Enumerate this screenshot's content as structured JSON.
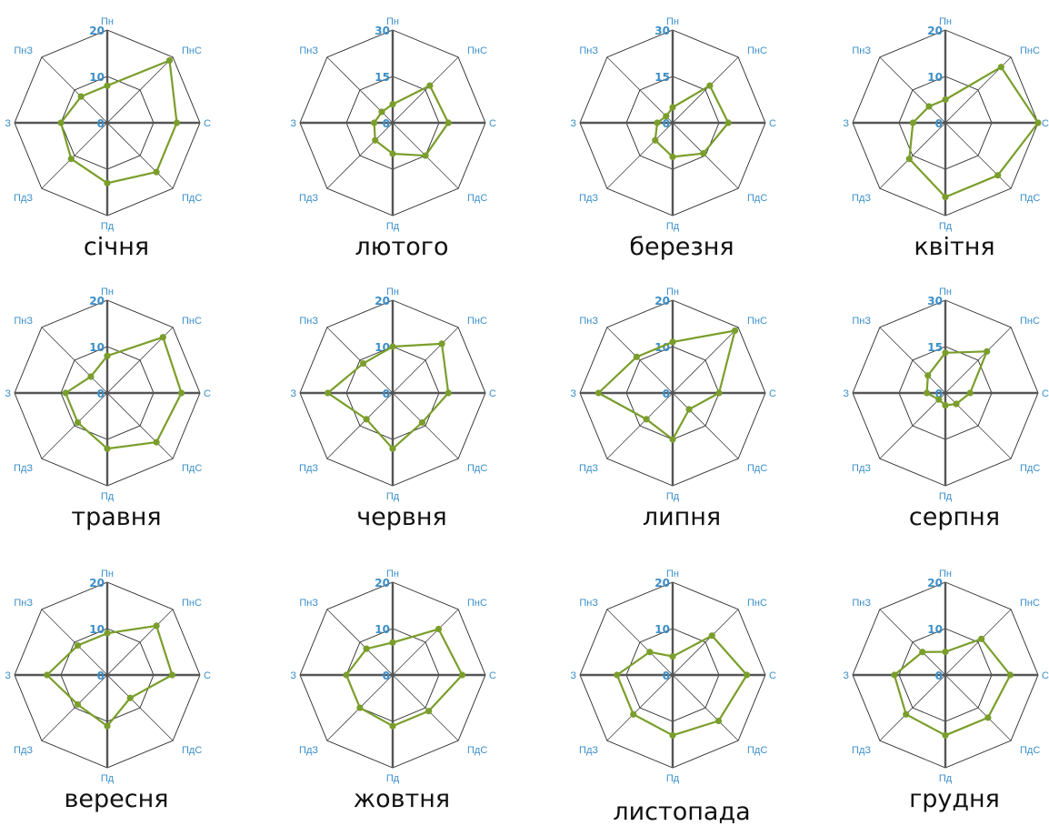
{
  "chart_data": [
    {
      "type": "radar",
      "month": "січня",
      "directions": [
        "Пн",
        "ПнС",
        "С",
        "ПдС",
        "Пд",
        "ПдЗ",
        "З",
        "ПнЗ"
      ],
      "rmax": 20,
      "scale_labels": [
        "20",
        "10",
        "0"
      ],
      "values": [
        8,
        19,
        15,
        15,
        13,
        11,
        10,
        8
      ],
      "color": "#7a9e2b"
    },
    {
      "type": "radar",
      "month": "лютого",
      "directions": [
        "Пн",
        "ПнС",
        "С",
        "ПдС",
        "Пд",
        "ПдЗ",
        "З",
        "ПнЗ"
      ],
      "rmax": 30,
      "scale_labels": [
        "30",
        "15",
        "0"
      ],
      "values": [
        6,
        17,
        18,
        15,
        10,
        8,
        6,
        5
      ],
      "color": "#7a9e2b"
    },
    {
      "type": "radar",
      "month": "березня",
      "directions": [
        "Пн",
        "ПнС",
        "С",
        "ПдС",
        "Пд",
        "ПдЗ",
        "З",
        "ПнЗ"
      ],
      "rmax": 30,
      "scale_labels": [
        "30",
        "15",
        "0"
      ],
      "values": [
        5,
        17,
        18,
        14,
        11,
        8,
        5,
        3
      ],
      "color": "#7a9e2b"
    },
    {
      "type": "radar",
      "month": "квітня",
      "directions": [
        "Пн",
        "ПнС",
        "С",
        "ПдС",
        "Пд",
        "ПдЗ",
        "З",
        "ПнЗ"
      ],
      "rmax": 20,
      "scale_labels": [
        "20",
        "10",
        "0"
      ],
      "values": [
        5,
        17,
        20,
        16,
        16,
        11,
        7,
        5
      ],
      "color": "#7a9e2b"
    },
    {
      "type": "radar",
      "month": "травня",
      "directions": [
        "Пн",
        "ПнС",
        "С",
        "ПдС",
        "Пд",
        "ПдЗ",
        "З",
        "ПнЗ"
      ],
      "rmax": 20,
      "scale_labels": [
        "20",
        "10",
        "0"
      ],
      "values": [
        8,
        17,
        16,
        15,
        12,
        9,
        9,
        5
      ],
      "color": "#7a9e2b"
    },
    {
      "type": "radar",
      "month": "червня",
      "directions": [
        "Пн",
        "ПнС",
        "С",
        "ПдС",
        "Пд",
        "ПдЗ",
        "З",
        "ПнЗ"
      ],
      "rmax": 20,
      "scale_labels": [
        "20",
        "10",
        "0"
      ],
      "values": [
        10,
        15,
        12,
        9,
        12,
        8,
        14,
        9
      ],
      "color": "#7a9e2b"
    },
    {
      "type": "radar",
      "month": "липня",
      "directions": [
        "Пн",
        "ПнС",
        "С",
        "ПдС",
        "Пд",
        "ПдЗ",
        "З",
        "ПнЗ"
      ],
      "rmax": 20,
      "scale_labels": [
        "20",
        "10",
        "0"
      ],
      "values": [
        11,
        19,
        10,
        5,
        10,
        8,
        16,
        11
      ],
      "color": "#7a9e2b"
    },
    {
      "type": "radar",
      "month": "серпня",
      "directions": [
        "Пн",
        "ПнС",
        "С",
        "ПдС",
        "Пд",
        "ПдЗ",
        "З",
        "ПнЗ"
      ],
      "rmax": 30,
      "scale_labels": [
        "30",
        "15",
        "0"
      ],
      "values": [
        13,
        19,
        8,
        5,
        4,
        3,
        6,
        8
      ],
      "color": "#7a9e2b"
    },
    {
      "type": "radar",
      "month": "вересня",
      "directions": [
        "Пн",
        "ПнС",
        "С",
        "ПдС",
        "Пд",
        "ПдЗ",
        "З",
        "ПнЗ"
      ],
      "rmax": 20,
      "scale_labels": [
        "20",
        "10",
        "0"
      ],
      "values": [
        9,
        15,
        14,
        7,
        11,
        9,
        13,
        9
      ],
      "color": "#7a9e2b"
    },
    {
      "type": "radar",
      "month": "жовтня",
      "directions": [
        "Пн",
        "ПнС",
        "С",
        "ПдС",
        "Пд",
        "ПдЗ",
        "З",
        "ПнЗ"
      ],
      "rmax": 20,
      "scale_labels": [
        "20",
        "10",
        "0"
      ],
      "values": [
        7,
        14,
        15,
        11,
        11,
        10,
        10,
        8
      ],
      "color": "#7a9e2b"
    },
    {
      "type": "radar",
      "month": "листопада",
      "directions": [
        "Пн",
        "ПнС",
        "С",
        "ПдС",
        "Пд",
        "ПдЗ",
        "З",
        "ПнЗ"
      ],
      "rmax": 20,
      "scale_labels": [
        "20",
        "10",
        "0"
      ],
      "values": [
        4,
        12,
        16,
        14,
        13,
        12,
        12,
        7
      ],
      "color": "#7a9e2b"
    },
    {
      "type": "radar",
      "month": "грудня",
      "directions": [
        "Пн",
        "ПнС",
        "С",
        "ПдС",
        "Пд",
        "ПдЗ",
        "З",
        "ПнЗ"
      ],
      "rmax": 20,
      "scale_labels": [
        "20",
        "10",
        "0"
      ],
      "values": [
        5,
        11,
        14,
        13,
        13,
        12,
        11,
        7
      ],
      "color": "#7a9e2b"
    }
  ]
}
